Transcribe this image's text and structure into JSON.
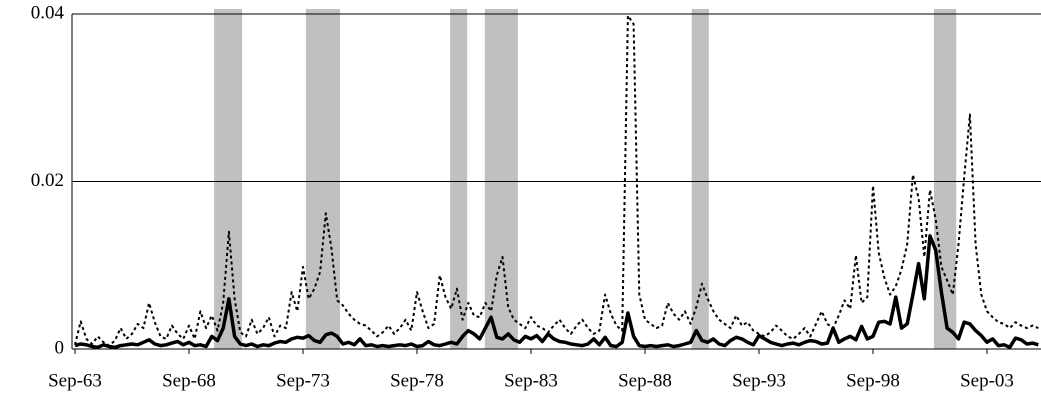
{
  "chart_data": {
    "type": "line",
    "categories": [
      "Sep-63",
      null,
      null,
      null,
      null,
      null,
      null,
      null,
      null,
      null,
      null,
      null,
      null,
      null,
      null,
      null,
      null,
      null,
      null,
      null,
      "Sep-68",
      null,
      null,
      null,
      null,
      null,
      null,
      null,
      null,
      null,
      null,
      null,
      null,
      null,
      null,
      null,
      null,
      null,
      null,
      null,
      "Sep-73",
      null,
      null,
      null,
      null,
      null,
      null,
      null,
      null,
      null,
      null,
      null,
      null,
      null,
      null,
      null,
      null,
      null,
      null,
      null,
      "Sep-78",
      null,
      null,
      null,
      null,
      null,
      null,
      null,
      null,
      null,
      null,
      null,
      null,
      null,
      null,
      null,
      null,
      null,
      null,
      null,
      "Sep-83",
      null,
      null,
      null,
      null,
      null,
      null,
      null,
      null,
      null,
      null,
      null,
      null,
      null,
      null,
      null,
      null,
      null,
      null,
      null,
      "Sep-88",
      null,
      null,
      null,
      null,
      null,
      null,
      null,
      null,
      null,
      null,
      null,
      null,
      null,
      null,
      null,
      null,
      null,
      null,
      null,
      "Sep-93",
      null,
      null,
      null,
      null,
      null,
      null,
      null,
      null,
      null,
      null,
      null,
      null,
      null,
      null,
      null,
      null,
      null,
      null,
      null,
      "Sep-98",
      null,
      null,
      null,
      null,
      null,
      null,
      null,
      null,
      null,
      null,
      null,
      null,
      null,
      null,
      null,
      null,
      null,
      null,
      null,
      "Sep-03",
      null,
      null,
      null,
      null,
      null,
      null,
      null,
      null,
      null
    ],
    "series": [
      {
        "color": "#000000",
        "style": "dotted",
        "values": [
          0.0005,
          0.0033,
          0.0012,
          0.0006,
          0.0015,
          0.0008,
          0.0004,
          0.001,
          0.0025,
          0.0012,
          0.0018,
          0.003,
          0.0025,
          0.0055,
          0.0032,
          0.0015,
          0.0012,
          0.0028,
          0.0018,
          0.0012,
          0.0028,
          0.0012,
          0.0045,
          0.0025,
          0.004,
          0.0022,
          0.0055,
          0.014,
          0.006,
          0.002,
          0.0015,
          0.0035,
          0.0018,
          0.0025,
          0.0038,
          0.0015,
          0.0028,
          0.0025,
          0.0068,
          0.0045,
          0.0098,
          0.006,
          0.0072,
          0.0092,
          0.0162,
          0.012,
          0.0058,
          0.0052,
          0.0042,
          0.0035,
          0.003,
          0.0028,
          0.0022,
          0.0015,
          0.002,
          0.0028,
          0.0018,
          0.0025,
          0.0035,
          0.0022,
          0.0068,
          0.0045,
          0.0025,
          0.003,
          0.0088,
          0.0062,
          0.0048,
          0.0072,
          0.0035,
          0.0055,
          0.004,
          0.0038,
          0.0055,
          0.0045,
          0.0088,
          0.011,
          0.005,
          0.0035,
          0.003,
          0.0025,
          0.0038,
          0.0028,
          0.0025,
          0.002,
          0.0028,
          0.0035,
          0.0025,
          0.0018,
          0.0028,
          0.0035,
          0.0025,
          0.0018,
          0.0022,
          0.0065,
          0.0042,
          0.0028,
          0.0022,
          0.0398,
          0.0388,
          0.0065,
          0.0035,
          0.003,
          0.0025,
          0.0028,
          0.0055,
          0.0042,
          0.0035,
          0.0045,
          0.003,
          0.005,
          0.0078,
          0.006,
          0.0045,
          0.0035,
          0.003,
          0.0025,
          0.004,
          0.0028,
          0.0032,
          0.0022,
          0.0018,
          0.0015,
          0.002,
          0.0028,
          0.0022,
          0.0015,
          0.0012,
          0.0018,
          0.0025,
          0.0015,
          0.003,
          0.0045,
          0.003,
          0.0025,
          0.004,
          0.0058,
          0.0048,
          0.0112,
          0.0055,
          0.0062,
          0.0195,
          0.0115,
          0.0085,
          0.0065,
          0.0075,
          0.0095,
          0.0125,
          0.0208,
          0.018,
          0.011,
          0.019,
          0.0155,
          0.0098,
          0.0082,
          0.0065,
          0.0125,
          0.0205,
          0.028,
          0.0125,
          0.0065,
          0.0045,
          0.0038,
          0.0032,
          0.003,
          0.0025,
          0.0032,
          0.0028,
          0.0025,
          0.0028,
          0.0025
        ]
      },
      {
        "color": "#000000",
        "style": "solid",
        "values": [
          0.0004,
          0.0006,
          0.0005,
          0.0003,
          0.0002,
          0.0005,
          0.0003,
          0.0002,
          0.0004,
          0.0005,
          0.0006,
          0.0005,
          0.0008,
          0.0011,
          0.0006,
          0.0004,
          0.0005,
          0.0007,
          0.0009,
          0.0005,
          0.0008,
          0.0004,
          0.0005,
          0.0003,
          0.0015,
          0.001,
          0.0025,
          0.006,
          0.0015,
          0.0006,
          0.0004,
          0.0006,
          0.0003,
          0.0005,
          0.0004,
          0.0007,
          0.0009,
          0.0008,
          0.0012,
          0.0014,
          0.0013,
          0.0016,
          0.001,
          0.0008,
          0.0017,
          0.0019,
          0.0015,
          0.0006,
          0.0008,
          0.0005,
          0.0012,
          0.0004,
          0.0005,
          0.0003,
          0.0004,
          0.0003,
          0.0004,
          0.0005,
          0.0004,
          0.0006,
          0.0003,
          0.0004,
          0.0009,
          0.0005,
          0.0004,
          0.0006,
          0.0008,
          0.0006,
          0.0015,
          0.0022,
          0.0018,
          0.0012,
          0.0025,
          0.0038,
          0.0014,
          0.0012,
          0.0018,
          0.0011,
          0.0008,
          0.0015,
          0.0012,
          0.0016,
          0.0009,
          0.0018,
          0.0012,
          0.0009,
          0.0008,
          0.0006,
          0.0005,
          0.0004,
          0.0006,
          0.0012,
          0.0005,
          0.0014,
          0.0004,
          0.0003,
          0.0008,
          0.0043,
          0.0015,
          0.0004,
          0.0003,
          0.0004,
          0.0003,
          0.0004,
          0.0005,
          0.0003,
          0.0004,
          0.0006,
          0.0008,
          0.0022,
          0.001,
          0.0008,
          0.0012,
          0.0006,
          0.0004,
          0.001,
          0.0014,
          0.0012,
          0.0008,
          0.0005,
          0.0016,
          0.0012,
          0.0008,
          0.0006,
          0.0004,
          0.0006,
          0.0007,
          0.0005,
          0.0008,
          0.001,
          0.0009,
          0.0006,
          0.0007,
          0.0025,
          0.0008,
          0.0012,
          0.0015,
          0.0011,
          0.0027,
          0.0012,
          0.0015,
          0.0032,
          0.0033,
          0.003,
          0.0062,
          0.0025,
          0.003,
          0.0065,
          0.0102,
          0.006,
          0.0135,
          0.0118,
          0.0068,
          0.0025,
          0.002,
          0.0012,
          0.0032,
          0.003,
          0.0022,
          0.0016,
          0.0008,
          0.0012,
          0.0004,
          0.0005,
          0.0002,
          0.0013,
          0.0011,
          0.0006,
          0.0007,
          0.0005
        ]
      }
    ],
    "shaded_ranges": [
      [
        24.4,
        29.3
      ],
      [
        40.5,
        46.5
      ],
      [
        65.8,
        68.8
      ],
      [
        71.9,
        77.7
      ],
      [
        108.2,
        111.2
      ],
      [
        150.7,
        154.6
      ]
    ],
    "shade_color": "#c0c0c0",
    "ylim": [
      0,
      0.04
    ],
    "yticks": [
      0,
      0.02,
      0.04
    ],
    "grid": true
  }
}
